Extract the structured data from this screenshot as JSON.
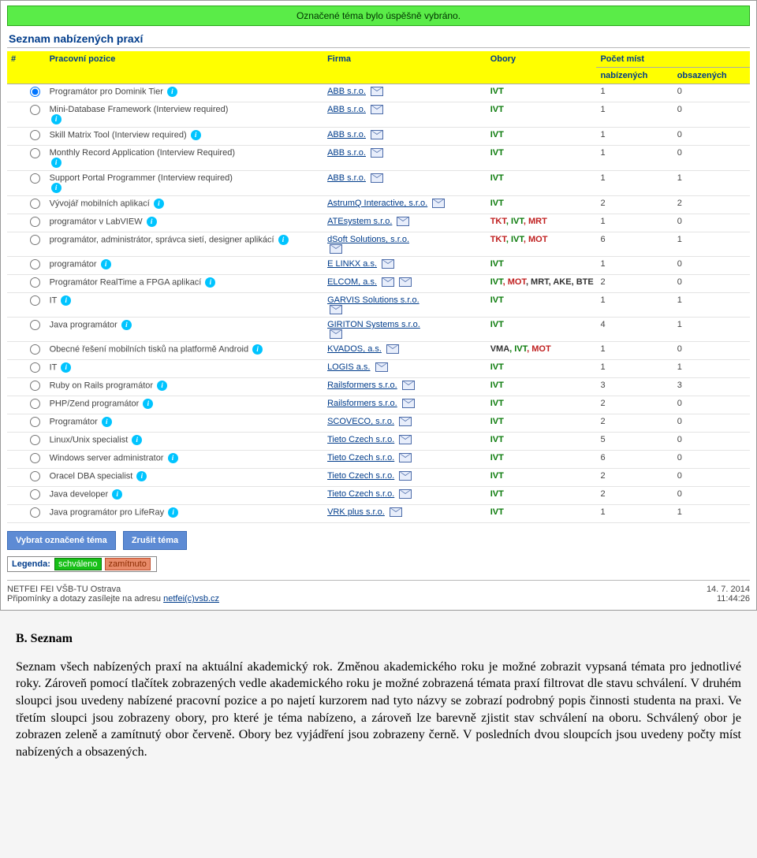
{
  "banner": "Označené téma bylo úspěšně vybráno.",
  "section_title": "Seznam nabízených praxí",
  "columns": {
    "hash": "#",
    "position": "Pracovní pozice",
    "company": "Firma",
    "fields": "Obory",
    "places": "Počet míst",
    "offered": "nabízených",
    "taken": "obsazených"
  },
  "rows": [
    {
      "checked": true,
      "pos": "Programátor pro Dominik Tier",
      "info": true,
      "firm": "ABB s.r.o.",
      "obory": [
        {
          "t": "IVT",
          "c": "g"
        }
      ],
      "nab": "1",
      "obs": "0"
    },
    {
      "checked": false,
      "pos": "Mini-Database Framework (Interview required)",
      "info": true,
      "info_below": true,
      "firm": "ABB s.r.o.",
      "obory": [
        {
          "t": "IVT",
          "c": "g"
        }
      ],
      "nab": "1",
      "obs": "0"
    },
    {
      "checked": false,
      "pos": "Skill Matrix Tool (Interview required)",
      "info": true,
      "firm": "ABB s.r.o.",
      "obory": [
        {
          "t": "IVT",
          "c": "g"
        }
      ],
      "nab": "1",
      "obs": "0"
    },
    {
      "checked": false,
      "pos": "Monthly Record Application (Interview Required)",
      "info": true,
      "info_below": true,
      "firm": "ABB s.r.o.",
      "obory": [
        {
          "t": "IVT",
          "c": "g"
        }
      ],
      "nab": "1",
      "obs": "0"
    },
    {
      "checked": false,
      "pos": "Support Portal Programmer (Interview required)",
      "info": true,
      "info_below": true,
      "firm": "ABB s.r.o.",
      "obory": [
        {
          "t": "IVT",
          "c": "g"
        }
      ],
      "nab": "1",
      "obs": "1"
    },
    {
      "checked": false,
      "pos": "Vývojář mobilních aplikací",
      "info": true,
      "firm": "AstrumQ Interactive, s.r.o.",
      "obory": [
        {
          "t": "IVT",
          "c": "g"
        }
      ],
      "nab": "2",
      "obs": "2"
    },
    {
      "checked": false,
      "pos": "programátor v LabVIEW",
      "info": true,
      "firm": "ATEsystem s.r.o.",
      "obory": [
        {
          "t": "TKT",
          "c": "r"
        },
        {
          "t": ", IVT",
          "c": "g"
        },
        {
          "t": ", MRT",
          "c": "r"
        }
      ],
      "nab": "1",
      "obs": "0"
    },
    {
      "checked": false,
      "pos": "programátor, administrátor, správca sietí, designer aplikácí",
      "info": true,
      "firm": "dSoft Solutions, s.r.o.",
      "mail_below": true,
      "obory": [
        {
          "t": "TKT",
          "c": "r"
        },
        {
          "t": ", IVT",
          "c": "g"
        },
        {
          "t": ", MOT",
          "c": "r"
        }
      ],
      "nab": "6",
      "obs": "1"
    },
    {
      "checked": false,
      "pos": "programátor",
      "info": true,
      "firm": "E LINKX a.s.",
      "obory": [
        {
          "t": "IVT",
          "c": "g"
        }
      ],
      "nab": "1",
      "obs": "0"
    },
    {
      "checked": false,
      "pos": "Programátor RealTime a FPGA aplikací",
      "info": true,
      "firm": "ELCOM, a.s.",
      "two_mail": true,
      "obory": [
        {
          "t": "IVT",
          "c": "g"
        },
        {
          "t": ", MOT",
          "c": "r"
        },
        {
          "t": ", MRT, AKE, BTE",
          "c": "d"
        }
      ],
      "nab": "2",
      "obs": "0"
    },
    {
      "checked": false,
      "pos": "IT",
      "info": true,
      "firm": "GARVIS Solutions s.r.o.",
      "mail_below": true,
      "obory": [
        {
          "t": "IVT",
          "c": "g"
        }
      ],
      "nab": "1",
      "obs": "1"
    },
    {
      "checked": false,
      "pos": "Java programátor",
      "info": true,
      "firm": "GIRITON Systems s.r.o.",
      "mail_below": true,
      "obory": [
        {
          "t": "IVT",
          "c": "g"
        }
      ],
      "nab": "4",
      "obs": "1"
    },
    {
      "checked": false,
      "pos": "Obecné řešení mobilních tisků na platformě Android",
      "info": true,
      "firm": "KVADOS, a.s.",
      "obory": [
        {
          "t": "VMA",
          "c": "d"
        },
        {
          "t": ", IVT",
          "c": "g"
        },
        {
          "t": ", MOT",
          "c": "r"
        }
      ],
      "nab": "1",
      "obs": "0"
    },
    {
      "checked": false,
      "pos": "IT",
      "info": true,
      "firm": "LOGIS a.s.",
      "obory": [
        {
          "t": "IVT",
          "c": "g"
        }
      ],
      "nab": "1",
      "obs": "1"
    },
    {
      "checked": false,
      "pos": "Ruby on Rails programátor",
      "info": true,
      "firm": "Railsformers s.r.o.",
      "obory": [
        {
          "t": "IVT",
          "c": "g"
        }
      ],
      "nab": "3",
      "obs": "3"
    },
    {
      "checked": false,
      "pos": "PHP/Zend programátor",
      "info": true,
      "firm": "Railsformers s.r.o.",
      "obory": [
        {
          "t": "IVT",
          "c": "g"
        }
      ],
      "nab": "2",
      "obs": "0"
    },
    {
      "checked": false,
      "pos": "Programátor",
      "info": true,
      "firm": "SCOVECO, s.r.o.",
      "obory": [
        {
          "t": "IVT",
          "c": "g"
        }
      ],
      "nab": "2",
      "obs": "0"
    },
    {
      "checked": false,
      "pos": "Linux/Unix specialist",
      "info": true,
      "firm": "Tieto Czech s.r.o.",
      "obory": [
        {
          "t": "IVT",
          "c": "g"
        }
      ],
      "nab": "5",
      "obs": "0"
    },
    {
      "checked": false,
      "pos": "Windows server administrator",
      "info": true,
      "firm": "Tieto Czech s.r.o.",
      "obory": [
        {
          "t": "IVT",
          "c": "g"
        }
      ],
      "nab": "6",
      "obs": "0"
    },
    {
      "checked": false,
      "pos": "Oracel DBA specialist",
      "info": true,
      "firm": "Tieto Czech s.r.o.",
      "obory": [
        {
          "t": "IVT",
          "c": "g"
        }
      ],
      "nab": "2",
      "obs": "0"
    },
    {
      "checked": false,
      "pos": "Java developer",
      "info": true,
      "firm": "Tieto Czech s.r.o.",
      "obory": [
        {
          "t": "IVT",
          "c": "g"
        }
      ],
      "nab": "2",
      "obs": "0"
    },
    {
      "checked": false,
      "pos": "Java programátor pro LifeRay",
      "info": true,
      "firm": "VRK plus s.r.o.",
      "obory": [
        {
          "t": "IVT",
          "c": "g"
        }
      ],
      "nab": "1",
      "obs": "1"
    }
  ],
  "buttons": {
    "select": "Vybrat označené téma",
    "cancel": "Zrušit téma"
  },
  "legend": {
    "label": "Legenda:",
    "approved": "schváleno",
    "rejected": "zamítnuto"
  },
  "footer": {
    "org": "NETFEI FEI VŠB-TU Ostrava",
    "contact_prefix": "Připomínky a dotazy zasílejte na adresu ",
    "contact_link": "netfei(c)vsb.cz",
    "date": "14. 7. 2014",
    "time": "11:44:26"
  },
  "below": {
    "heading": "B. Seznam",
    "para": "Seznam všech nabízených praxí na aktuální akademický rok. Změnou akademického roku je možné zobrazit vypsaná témata pro jednotlivé roky. Zároveň pomocí tlačítek zobrazených vedle akademického roku je možné zobrazená témata praxí filtrovat dle stavu schválení. V druhém sloupci jsou uvedeny nabízené pracovní pozice a po najetí kurzorem nad tyto názvy se zobrazí podrobný popis činnosti studenta na praxi. Ve třetím sloupci jsou zobrazeny obory, pro které je téma nabízeno, a zároveň lze barevně zjistit stav schválení na oboru. Schválený obor je zobrazen zeleně a zamítnutý obor červeně. Obory bez vyjádření jsou zobrazeny černě. V posledních dvou sloupcích jsou uvedeny počty míst nabízených a obsazených."
  }
}
